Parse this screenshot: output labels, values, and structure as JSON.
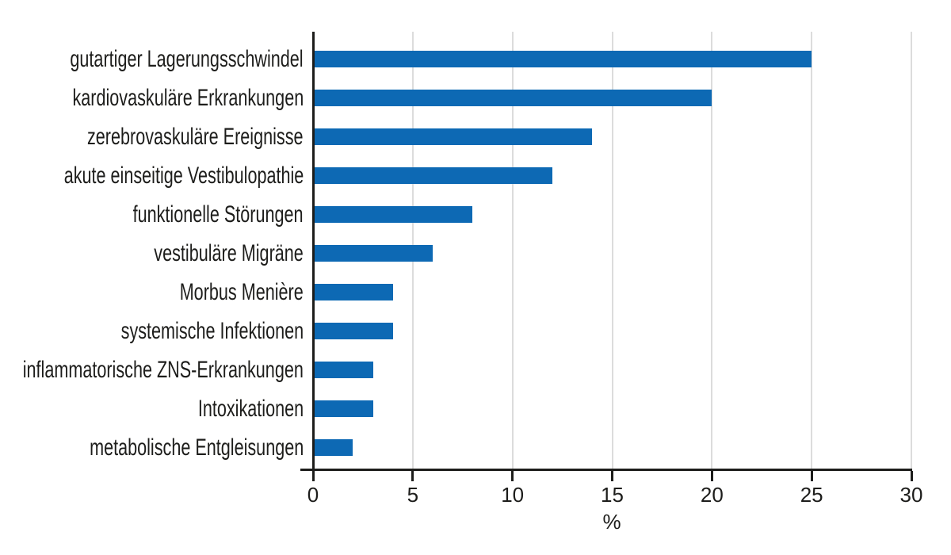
{
  "chart_data": {
    "type": "bar",
    "orientation": "horizontal",
    "title": "",
    "xlabel": "%",
    "ylabel": "",
    "xlim": [
      0,
      30
    ],
    "xticks": [
      0,
      5,
      10,
      15,
      20,
      25,
      30
    ],
    "grid": "vertical-light-gray",
    "legend": "none",
    "bar_color": "#0d69b4",
    "categories": [
      "gutartiger Lagerungsschwindel",
      "kardiovaskuläre Erkrankungen",
      "zerebrovaskuläre Ereignisse",
      "akute einseitige Vestibulopathie",
      "funktionelle Störungen",
      "vestibuläre Migräne",
      "Morbus Menière",
      "systemische Infektionen",
      "inflammatorische ZNS-Erkrankungen",
      "Intoxikationen",
      "metabolische Entgleisungen"
    ],
    "values": [
      25,
      20,
      14,
      12,
      8,
      6,
      4,
      4,
      3,
      3,
      2
    ]
  },
  "colors": {
    "bar": "#0d69b4",
    "axis": "#1d1d1b",
    "gridline": "#dcdcdc",
    "text": "#1d1d1b",
    "background": "#ffffff"
  }
}
